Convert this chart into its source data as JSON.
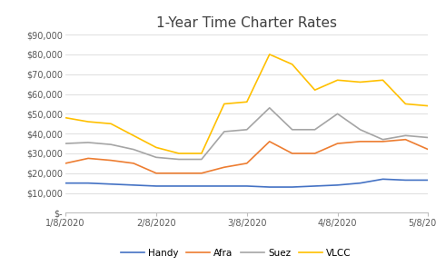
{
  "title": "1-Year Time Charter Rates",
  "x_labels": [
    "1/8/2020",
    "2/8/2020",
    "3/8/2020",
    "4/8/2020",
    "5/8/2020"
  ],
  "x_tick_positions": [
    0,
    4,
    8,
    12,
    16
  ],
  "series": {
    "Handy": {
      "color": "#4472C4",
      "values": [
        15000,
        15000,
        14500,
        14000,
        13500,
        13500,
        13500,
        13500,
        13500,
        13000,
        13000,
        13500,
        14000,
        15000,
        17000,
        16500,
        16500
      ]
    },
    "Afra": {
      "color": "#ED7D31",
      "values": [
        25000,
        27500,
        26500,
        25000,
        20000,
        20000,
        20000,
        23000,
        25000,
        36000,
        30000,
        30000,
        35000,
        36000,
        36000,
        37000,
        32000
      ]
    },
    "Suez": {
      "color": "#A5A5A5",
      "values": [
        35000,
        35500,
        34500,
        32000,
        28000,
        27000,
        27000,
        41000,
        42000,
        53000,
        42000,
        42000,
        50000,
        42000,
        37000,
        39000,
        38000
      ]
    },
    "VLCC": {
      "color": "#FFC000",
      "values": [
        48000,
        46000,
        45000,
        39000,
        33000,
        30000,
        30000,
        55000,
        56000,
        80000,
        75000,
        62000,
        67000,
        66000,
        67000,
        55000,
        54000
      ]
    }
  },
  "ylim": [
    0,
    90000
  ],
  "yticks": [
    0,
    10000,
    20000,
    30000,
    40000,
    50000,
    60000,
    70000,
    80000,
    90000
  ],
  "ytick_labels": [
    "$-",
    "$10,000",
    "$20,000",
    "$30,000",
    "$40,000",
    "$50,000",
    "$60,000",
    "$70,000",
    "$80,000",
    "$90,000"
  ],
  "background_color": "#ffffff",
  "grid_color": "#d9d9d9",
  "legend_order": [
    "Handy",
    "Afra",
    "Suez",
    "VLCC"
  ],
  "title_fontsize": 11,
  "tick_fontsize": 7,
  "legend_fontsize": 7.5
}
